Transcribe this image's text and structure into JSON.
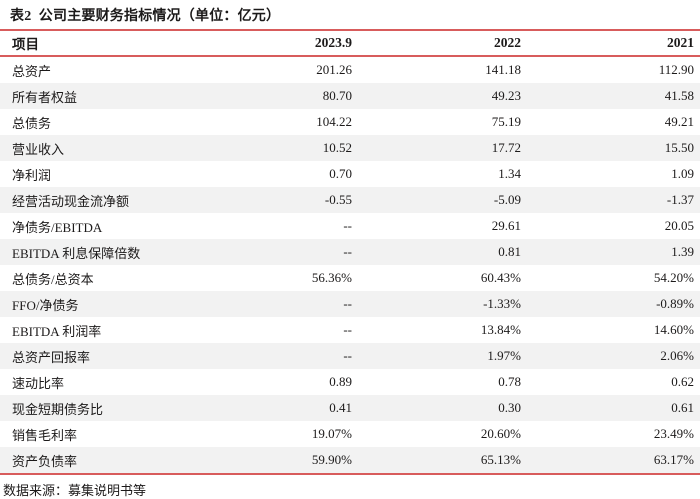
{
  "title": "表2  公司主要财务指标情况（单位：亿元）",
  "colors": {
    "accent_line": "#d85c5c",
    "stripe": "#f2f2f2",
    "text": "#1c1a1a"
  },
  "table": {
    "headers": [
      "项目",
      "2023.9",
      "2022",
      "2021"
    ],
    "rows": [
      {
        "label": "总资产",
        "values": [
          "201.26",
          "141.18",
          "112.90"
        ]
      },
      {
        "label": "所有者权益",
        "values": [
          "80.70",
          "49.23",
          "41.58"
        ]
      },
      {
        "label": "总债务",
        "values": [
          "104.22",
          "75.19",
          "49.21"
        ]
      },
      {
        "label": "营业收入",
        "values": [
          "10.52",
          "17.72",
          "15.50"
        ]
      },
      {
        "label": "净利润",
        "values": [
          "0.70",
          "1.34",
          "1.09"
        ]
      },
      {
        "label": "经营活动现金流净额",
        "values": [
          "-0.55",
          "-5.09",
          "-1.37"
        ]
      },
      {
        "label": "净债务/EBITDA",
        "values": [
          "--",
          "29.61",
          "20.05"
        ]
      },
      {
        "label": "EBITDA 利息保障倍数",
        "values": [
          "--",
          "0.81",
          "1.39"
        ]
      },
      {
        "label": "总债务/总资本",
        "values": [
          "56.36%",
          "60.43%",
          "54.20%"
        ]
      },
      {
        "label": "FFO/净债务",
        "values": [
          "--",
          "-1.33%",
          "-0.89%"
        ]
      },
      {
        "label": "EBITDA 利润率",
        "values": [
          "--",
          "13.84%",
          "14.60%"
        ]
      },
      {
        "label": "总资产回报率",
        "values": [
          "--",
          "1.97%",
          "2.06%"
        ]
      },
      {
        "label": "速动比率",
        "values": [
          "0.89",
          "0.78",
          "0.62"
        ]
      },
      {
        "label": "现金短期债务比",
        "values": [
          "0.41",
          "0.30",
          "0.61"
        ]
      },
      {
        "label": "销售毛利率",
        "values": [
          "19.07%",
          "20.60%",
          "23.49%"
        ]
      },
      {
        "label": "资产负债率",
        "values": [
          "59.90%",
          "65.13%",
          "63.17%"
        ]
      }
    ]
  },
  "footer": {
    "source": "数据来源：募集说明书等"
  }
}
